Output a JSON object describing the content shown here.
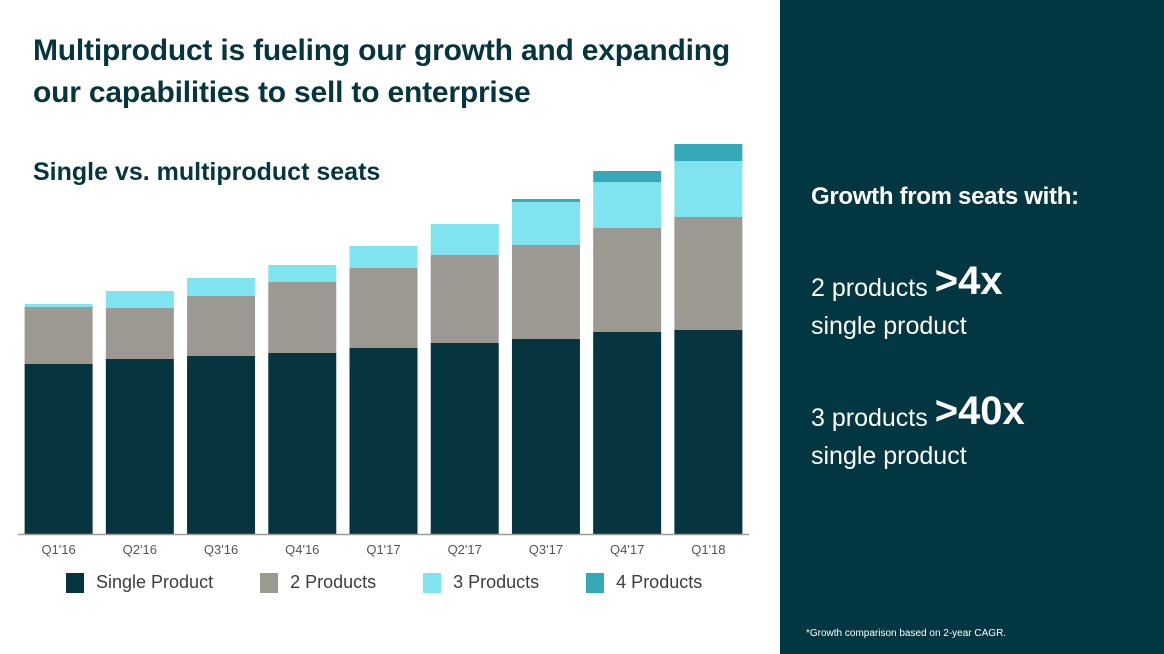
{
  "slide": {
    "title": "Multiproduct is fueling our growth and expanding our capabilities to sell to enterprise",
    "subtitle": "Single vs. multiproduct seats"
  },
  "panel": {
    "heading": "Growth from seats with:",
    "stats": [
      {
        "prefix": "2 products",
        "value": ">4x",
        "suffix": "single product"
      },
      {
        "prefix": "3 products",
        "value": ">40x",
        "suffix": "single product"
      }
    ],
    "footnote": "*Growth comparison based on 2-year CAGR."
  },
  "colors": {
    "single": "#06343f",
    "two": "#9c9993",
    "three": "#7fe3f0",
    "four": "#36a9b8",
    "panel_bg": "#023640"
  },
  "chart_data": {
    "type": "bar",
    "stacked": true,
    "title": "Single vs. multiproduct seats",
    "xlabel": "",
    "ylabel": "",
    "y_units": "relative seats (no axis scale shown)",
    "categories": [
      "Q1'16",
      "Q2'16",
      "Q3'16",
      "Q4'16",
      "Q1'17",
      "Q2'17",
      "Q3'17",
      "Q4'17",
      "Q1'18"
    ],
    "series": [
      {
        "name": "Single Product",
        "color": "#06343f",
        "values": [
          170,
          175,
          178,
          181,
          186,
          191,
          195,
          202,
          204
        ]
      },
      {
        "name": "2 Products",
        "color": "#9c9993",
        "values": [
          57,
          51,
          60,
          71,
          80,
          88,
          94,
          104,
          113
        ]
      },
      {
        "name": "3 Products",
        "color": "#7fe3f0",
        "values": [
          3,
          17,
          18,
          17,
          22,
          31,
          43,
          46,
          56
        ]
      },
      {
        "name": "4 Products",
        "color": "#36a9b8",
        "values": [
          0,
          0,
          0,
          0,
          0,
          0,
          3,
          11,
          17
        ]
      }
    ],
    "ylim": [
      0,
      400
    ],
    "grid": false,
    "legend": "bottom"
  }
}
